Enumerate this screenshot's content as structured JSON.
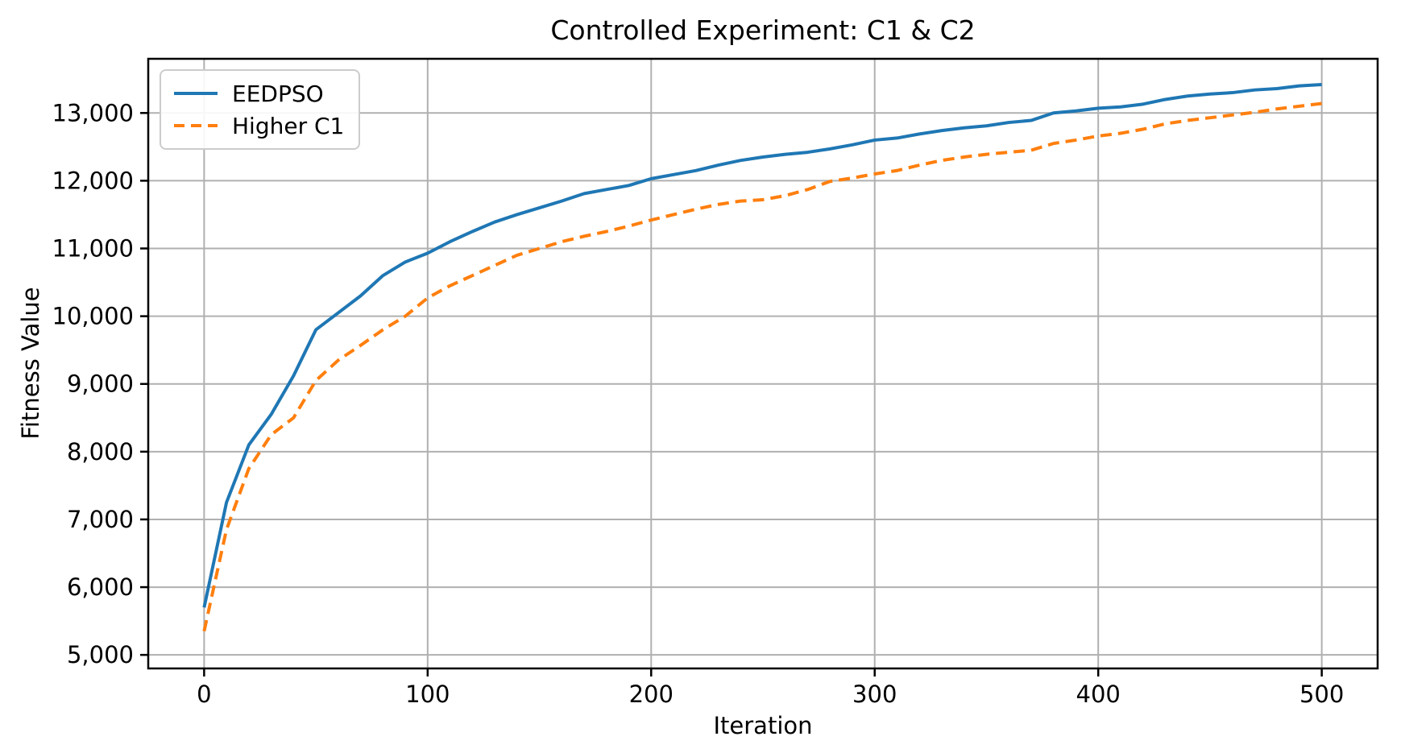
{
  "chart_data": {
    "type": "line",
    "title": "Controlled Experiment: C1 & C2",
    "xlabel": "Iteration",
    "ylabel": "Fitness Value",
    "xlim": [
      -25,
      525
    ],
    "ylim": [
      4800,
      13800
    ],
    "x_ticks": [
      0,
      100,
      200,
      300,
      400,
      500
    ],
    "y_ticks": [
      5000,
      6000,
      7000,
      8000,
      9000,
      10000,
      11000,
      12000,
      13000
    ],
    "grid": true,
    "grid_color": "#b0b0b0",
    "legend_position": "upper-left",
    "x": [
      0,
      10,
      20,
      30,
      40,
      50,
      60,
      70,
      80,
      90,
      100,
      110,
      120,
      130,
      140,
      150,
      160,
      170,
      180,
      190,
      200,
      210,
      220,
      230,
      240,
      250,
      260,
      270,
      280,
      290,
      300,
      310,
      320,
      330,
      340,
      350,
      360,
      370,
      380,
      390,
      400,
      410,
      420,
      430,
      440,
      450,
      460,
      470,
      480,
      490,
      500
    ],
    "series": [
      {
        "name": "EEDPSO",
        "color": "#1f77b4",
        "line_style": "solid",
        "values": [
          5700,
          7250,
          8100,
          8550,
          9120,
          9800,
          10050,
          10300,
          10600,
          10800,
          10930,
          11100,
          11250,
          11390,
          11500,
          11600,
          11700,
          11810,
          11870,
          11930,
          12030,
          12090,
          12150,
          12230,
          12300,
          12350,
          12390,
          12420,
          12470,
          12530,
          12600,
          12630,
          12690,
          12740,
          12780,
          12810,
          12860,
          12890,
          13000,
          13030,
          13070,
          13090,
          13130,
          13200,
          13250,
          13280,
          13300,
          13340,
          13360,
          13400,
          13420
        ]
      },
      {
        "name": "Higher C1",
        "color": "#ff7f0e",
        "line_style": "dashed",
        "values": [
          5350,
          6850,
          7750,
          8250,
          8500,
          9050,
          9350,
          9570,
          9800,
          10000,
          10270,
          10450,
          10600,
          10750,
          10900,
          11000,
          11100,
          11180,
          11250,
          11330,
          11420,
          11500,
          11580,
          11650,
          11700,
          11720,
          11780,
          11870,
          11990,
          12040,
          12100,
          12150,
          12230,
          12300,
          12350,
          12390,
          12420,
          12450,
          12550,
          12600,
          12660,
          12700,
          12760,
          12840,
          12890,
          12930,
          12970,
          13010,
          13060,
          13100,
          13140
        ]
      }
    ]
  }
}
